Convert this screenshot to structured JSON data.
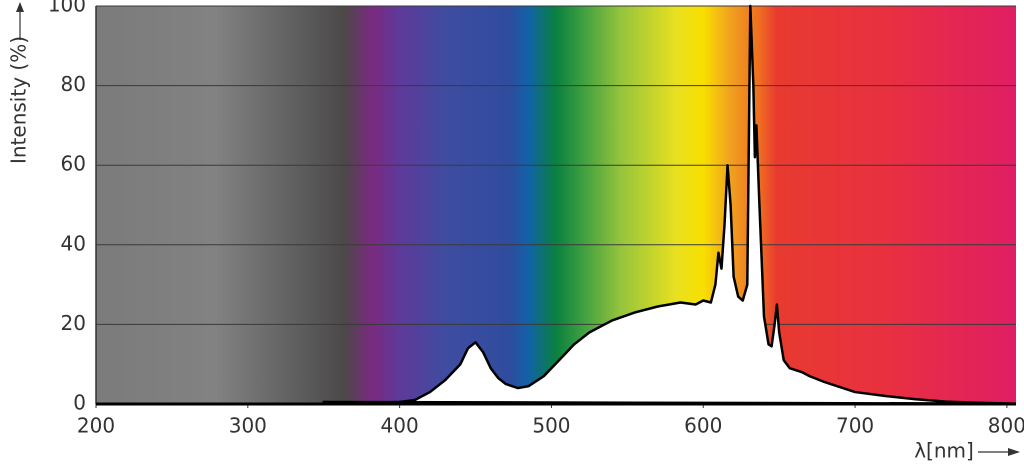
{
  "chart_data": {
    "type": "area",
    "y_label": "Intensity (%)",
    "x_label": "λ[nm]",
    "x": [
      350,
      360,
      380,
      400,
      410,
      420,
      430,
      440,
      445,
      450,
      455,
      460,
      465,
      470,
      478,
      485,
      495,
      505,
      515,
      525,
      540,
      555,
      570,
      585,
      595,
      600,
      605,
      608,
      610,
      612,
      614,
      616,
      618,
      620,
      623,
      626,
      629,
      631,
      633,
      634,
      635,
      637,
      640,
      643,
      645,
      647,
      648.5,
      650,
      653,
      657,
      665,
      670,
      680,
      700,
      720,
      740,
      760,
      780,
      805
    ],
    "series": [
      {
        "color": "#000000",
        "values": [
          0.5,
          0.4,
          0.3,
          0.5,
          1,
          3,
          6,
          10,
          14,
          15.5,
          13,
          9,
          6.5,
          5,
          4,
          4.5,
          7,
          11,
          15,
          18,
          21,
          23,
          24.5,
          25.5,
          25,
          26,
          25.5,
          30,
          38,
          34,
          45,
          60,
          50,
          32,
          27,
          26,
          30,
          100,
          80,
          62,
          70,
          50,
          22,
          15,
          14.5,
          20,
          25,
          18,
          11,
          9,
          8,
          7,
          5.5,
          3,
          2,
          1.2,
          0.6,
          0.3,
          0.1
        ]
      }
    ],
    "xlim": [
      200,
      806
    ],
    "ylim": [
      0,
      100
    ],
    "xticks": [
      200,
      300,
      400,
      500,
      600,
      700,
      800
    ],
    "yticks": [
      0,
      20,
      40,
      60,
      80,
      100
    ],
    "grid": true
  }
}
